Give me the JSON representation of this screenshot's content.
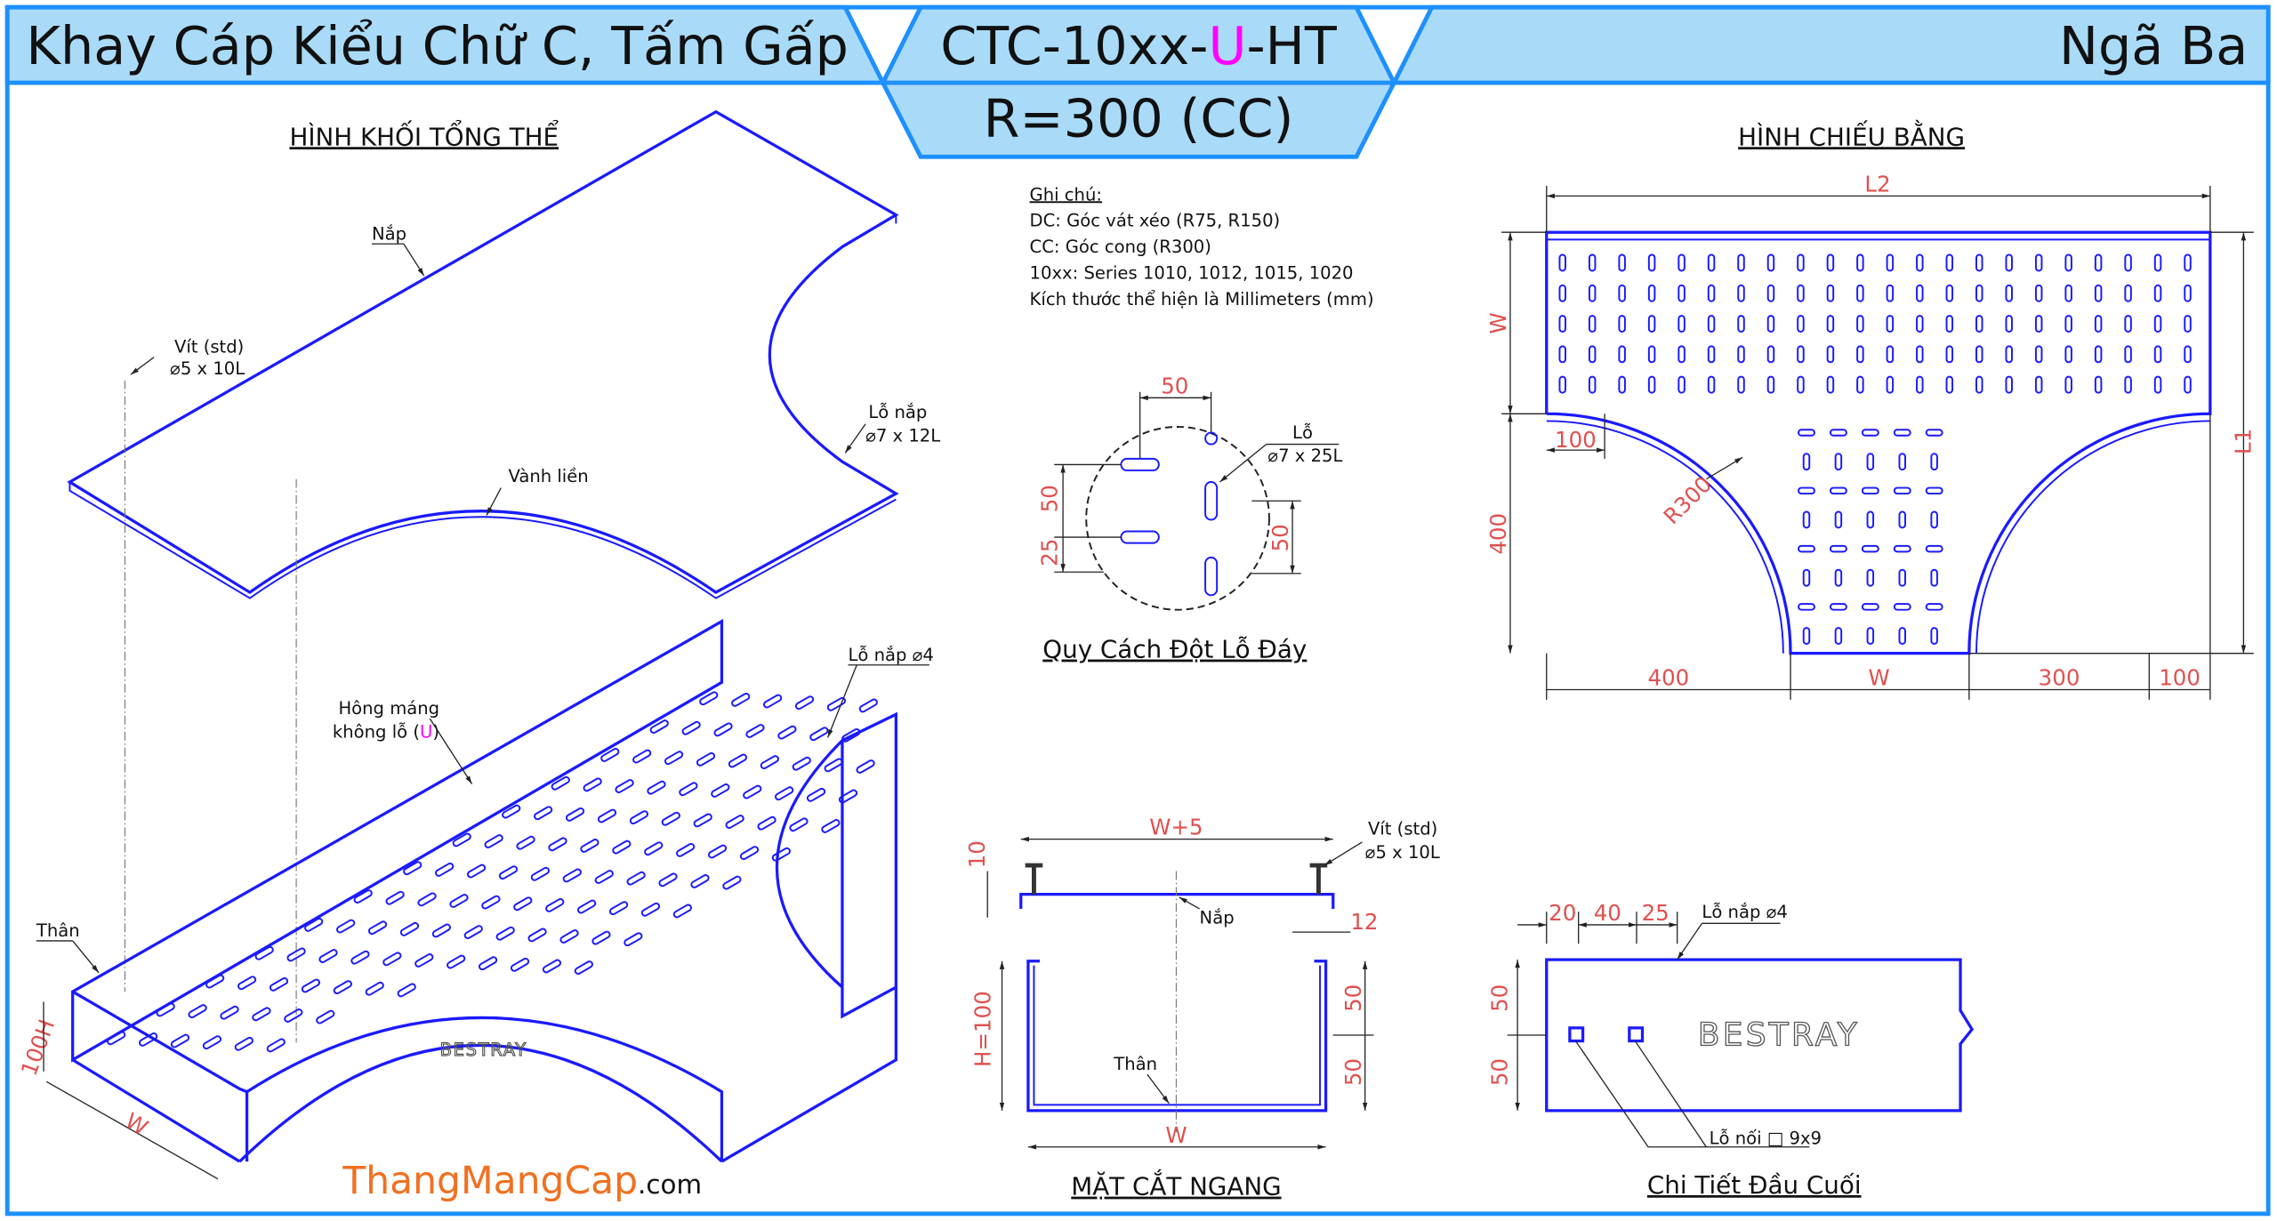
{
  "header": {
    "title_left": "Khay Cáp Kiểu Chữ C, Tấm Gấp",
    "code_prefix": "CTC-10xx-",
    "code_highlight": "U",
    "code_suffix": "-HT",
    "radius": "R=300 (CC)",
    "title_right": "Ngã Ba",
    "highlight_color": "#ff00ff",
    "band_color": "#a9dbf8",
    "border_color": "#1e90ff"
  },
  "iso_view": {
    "title": "HÌNH KHỐI TỔNG THỂ",
    "lid_label": "Nắp",
    "screw_label": "Vít (std)",
    "screw_size": "⌀5 x 10L",
    "lid_hole_label": "Lỗ nắp",
    "lid_hole_size": "⌀7 x 12L",
    "rim_label": "Vành liền",
    "lid_hole4_label": "Lỗ nắp ⌀4",
    "side_label_1": "Hông máng",
    "side_label_2a": "không lỗ (",
    "side_label_2b": "U",
    "side_label_2c": ")",
    "body_label": "Thân",
    "height_dim": "100H",
    "width_dim": "W",
    "logo": "BESTRAY"
  },
  "notes": {
    "title": "Ghi chú:",
    "lines": [
      "DC: Góc vát xéo (R75, R150)",
      "CC: Góc cong (R300)",
      "10xx: Series 1010, 1012, 1015, 1020",
      "Kích thước thể hiện là Millimeters (mm)"
    ]
  },
  "hole_spec": {
    "title": "Quy Cách Đột Lỗ Đáy",
    "dim_top": "50",
    "dim_left_top": "50",
    "dim_left_bottom": "25",
    "dim_right": "50",
    "hole_label": "Lỗ",
    "hole_size": "⌀7 x 25L"
  },
  "plan_view": {
    "title": "HÌNH CHIẾU BẰNG",
    "L2": "L2",
    "W_left": "W",
    "L1": "L1",
    "dim_100_top": "100",
    "radius": "R300",
    "dim_400_vert": "400",
    "bottom_dims": [
      "400",
      "W",
      "300",
      "100"
    ]
  },
  "section": {
    "title": "MẶT CẮT NGANG",
    "top_width": "W+5",
    "screw_label": "Vít (std)",
    "screw_size": "⌀5 x 10L",
    "dim_10": "10",
    "lid_label": "Nắp",
    "dim_12": "12",
    "height": "H=100",
    "dim_50_top": "50",
    "dim_50_bottom": "50",
    "body_label": "Thân",
    "bottom_width": "W"
  },
  "end_detail": {
    "title": "Chi Tiết Đầu Cuối",
    "dims_top": [
      "20",
      "40",
      "25"
    ],
    "lid_hole_label": "Lỗ nắp ⌀4",
    "dim_50_top": "50",
    "dim_50_bottom": "50",
    "joint_hole_label": "Lỗ nối □ 9x9",
    "logo": "BESTRAY"
  },
  "footer": {
    "brand": "ThangMangCap",
    "tld": ".com",
    "brand_color": "#f07020"
  }
}
